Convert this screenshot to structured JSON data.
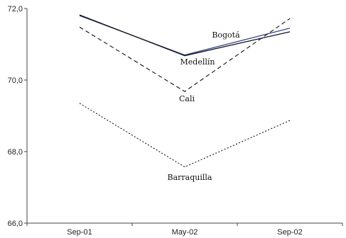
{
  "chart_data": {
    "type": "line",
    "title": "",
    "xlabel": "",
    "ylabel": "",
    "categories": [
      "Sep-01",
      "May-02",
      "Sep-02"
    ],
    "ylim": [
      66.0,
      72.0
    ],
    "yticks": [
      66.0,
      68.0,
      70.0,
      72.0
    ],
    "ytick_labels": [
      "66,0",
      "68,0",
      "70,0",
      "72,0"
    ],
    "grid": false,
    "legend": "none",
    "series": [
      {
        "name": "Bogotá",
        "values": [
          71.8,
          70.7,
          71.45
        ],
        "color": "#3b4a8c",
        "style": "solid"
      },
      {
        "name": "Medellín",
        "values": [
          71.82,
          70.68,
          71.35
        ],
        "color": "#111111",
        "style": "solid"
      },
      {
        "name": "Cali",
        "values": [
          71.48,
          69.68,
          71.72
        ],
        "color": "#111111",
        "style": "dashed"
      },
      {
        "name": "Barraquilla",
        "values": [
          69.35,
          67.57,
          68.87
        ],
        "color": "#111111",
        "style": "dotted"
      }
    ]
  }
}
